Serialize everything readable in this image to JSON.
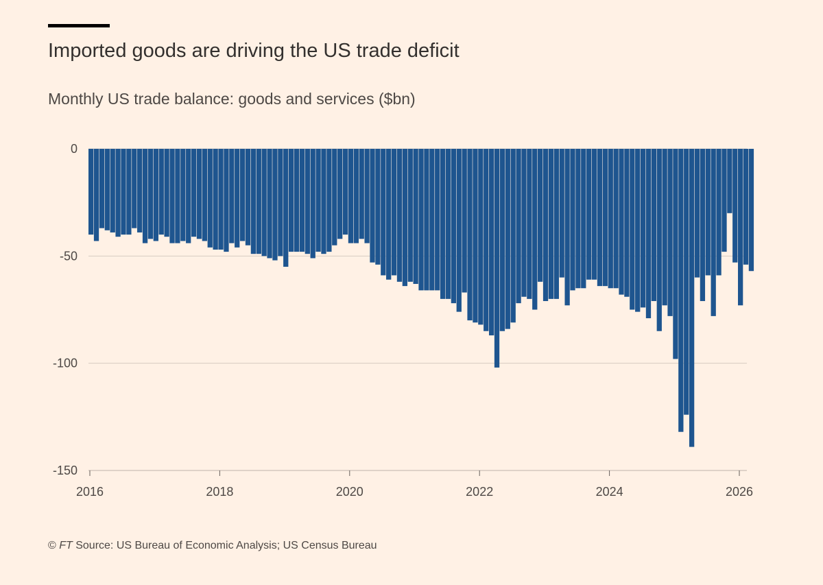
{
  "header": {
    "title": "Imported goods are driving the US trade deficit",
    "subtitle": "Monthly US trade balance: goods and services ($bn)"
  },
  "footer": {
    "copyright": "© ",
    "ft": "FT",
    "source": " Source: US Bureau of Economic Analysis; US Census Bureau"
  },
  "chart_data": {
    "type": "bar",
    "title": "Imported goods are driving the US trade deficit",
    "subtitle": "Monthly US trade balance: goods and services ($bn)",
    "xlabel": "",
    "ylabel": "",
    "ylim": [
      -150,
      0
    ],
    "yticks": [
      0,
      -50,
      -100,
      -150
    ],
    "ytick_labels": [
      "0",
      "-50",
      "-100",
      "-150"
    ],
    "xticks": [
      "2016",
      "2018",
      "2020",
      "2022",
      "2024",
      "2026"
    ],
    "xlim": [
      "2016-01",
      "2026-02"
    ],
    "grid": true,
    "bar_color": "#1e558f",
    "start_month": "2016-01",
    "values": [
      -40,
      -43,
      -37,
      -38,
      -39,
      -41,
      -40,
      -40,
      -37,
      -39,
      -44,
      -42,
      -43,
      -40,
      -41,
      -44,
      -44,
      -43,
      -44,
      -41,
      -42,
      -43,
      -46,
      -47,
      -47,
      -48,
      -44,
      -46,
      -43,
      -45,
      -49,
      -49,
      -50,
      -51,
      -52,
      -50,
      -55,
      -48,
      -48,
      -48,
      -49,
      -51,
      -48,
      -49,
      -48,
      -45,
      -42,
      -40,
      -44,
      -44,
      -42,
      -44,
      -53,
      -54,
      -59,
      -61,
      -59,
      -62,
      -64,
      -62,
      -63,
      -66,
      -66,
      -66,
      -66,
      -70,
      -70,
      -72,
      -76,
      -67,
      -80,
      -81,
      -82,
      -85,
      -87,
      -102,
      -85,
      -84,
      -81,
      -72,
      -69,
      -70,
      -75,
      -62,
      -71,
      -70,
      -70,
      -60,
      -73,
      -66,
      -65,
      -65,
      -61,
      -61,
      -64,
      -64,
      -65,
      -65,
      -68,
      -69,
      -75,
      -76,
      -74,
      -79,
      -71,
      -85,
      -73,
      -78,
      -98,
      -132,
      -124,
      -139,
      -60,
      -71,
      -59,
      -78,
      -59,
      -48,
      -30,
      -53,
      -73,
      -54,
      -57
    ]
  }
}
